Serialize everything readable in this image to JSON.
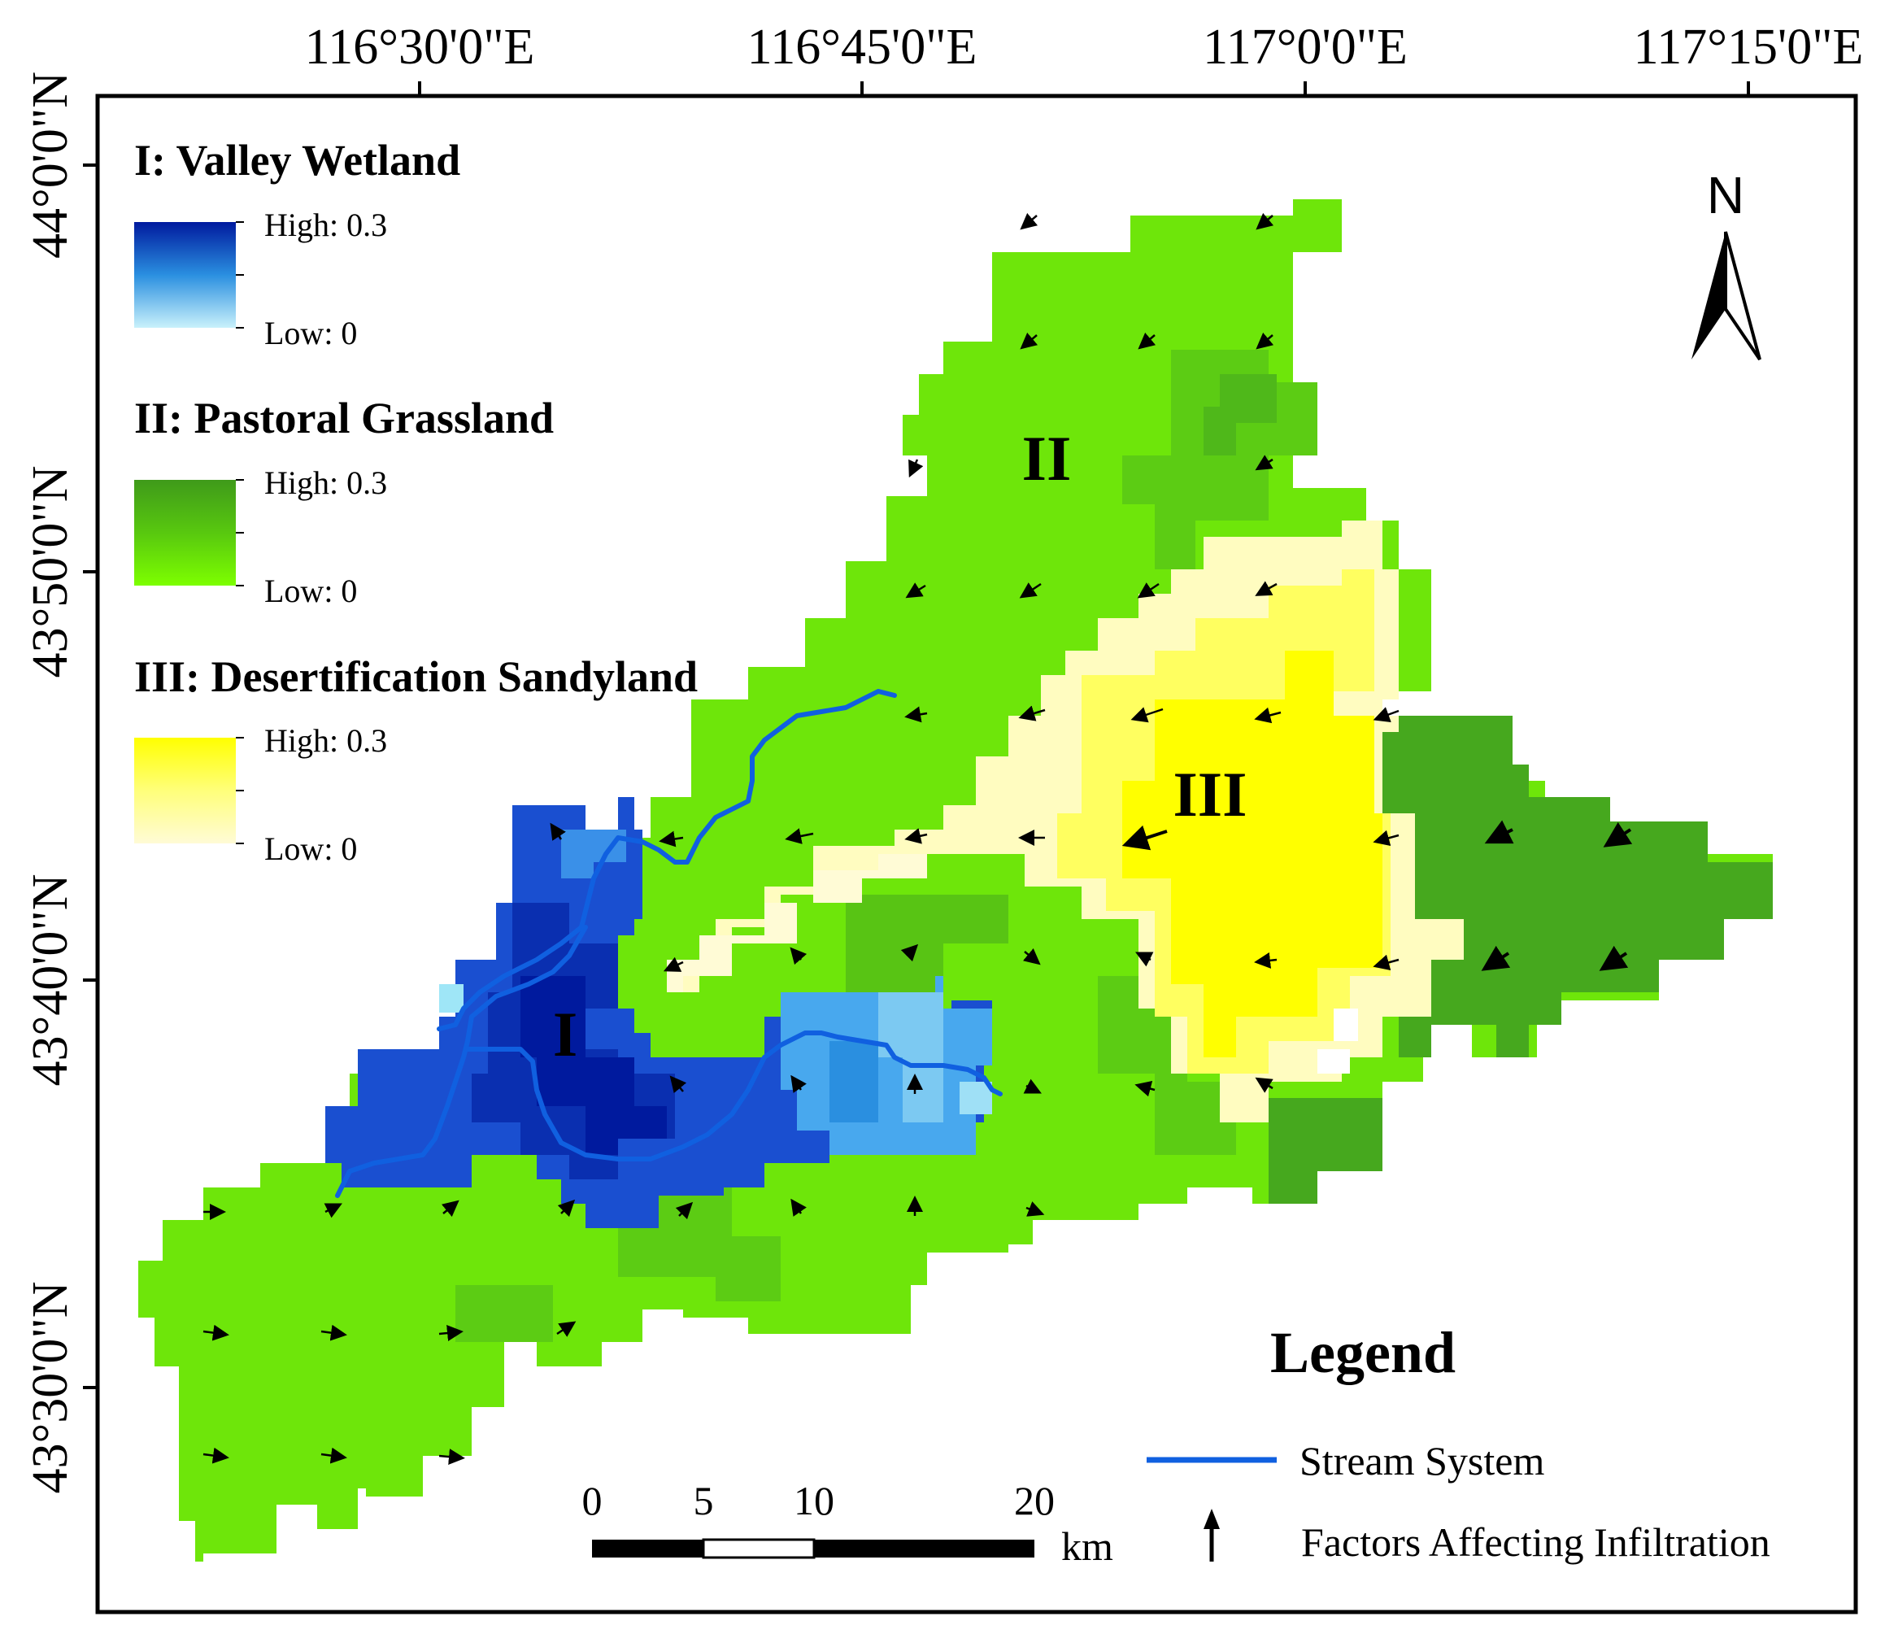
{
  "map": {
    "lon_ticks": [
      "116°30'0\"E",
      "116°45'0\"E",
      "117°0'0\"E",
      "117°15'0\"E"
    ],
    "lat_ticks": [
      "44°0'0\"N",
      "43°50'0\"N",
      "43°40'0\"N",
      "43°30'0\"N"
    ],
    "north_label": "N",
    "zones": [
      {
        "id": "I",
        "label": "I"
      },
      {
        "id": "II",
        "label": "II"
      },
      {
        "id": "III",
        "label": "III"
      }
    ]
  },
  "legend_ramps": [
    {
      "title": "I: Valley Wetland",
      "high": "High: 0.3",
      "low": "Low: 0",
      "color_high": "#001a9e",
      "color_mid": "#2a8fe0",
      "color_low": "#c9f1fb"
    },
    {
      "title": "II: Pastoral Grassland",
      "high": "High: 0.3",
      "low": "Low: 0",
      "color_high": "#3f9a1a",
      "color_mid": "#58c80f",
      "color_low": "#7dff00"
    },
    {
      "title": "III: Desertification Sandyland",
      "high": "High: 0.3",
      "low": "Low: 0",
      "color_high": "#ffff00",
      "color_mid": "#ffff7a",
      "color_low": "#fffbd6"
    }
  ],
  "legend": {
    "title": "Legend",
    "stream_label": "Stream System",
    "arrow_label": "Factors Affecting Infiltration",
    "stream_color": "#1060e0"
  },
  "scale_bar": {
    "ticks": [
      "0",
      "5",
      "10",
      "20"
    ],
    "unit": "km"
  },
  "colors": {
    "grass_light": "#6ee60a",
    "grass_mid": "#5ccc14",
    "grass_dark": "#46a81e",
    "wetland_dark": "#0a2fb0",
    "wetland_mid": "#1a4fd0",
    "wetland_light": "#48a8ee",
    "sand_bright": "#ffff00",
    "sand_mid": "#ffff60",
    "sand_light": "#fffcc0"
  }
}
